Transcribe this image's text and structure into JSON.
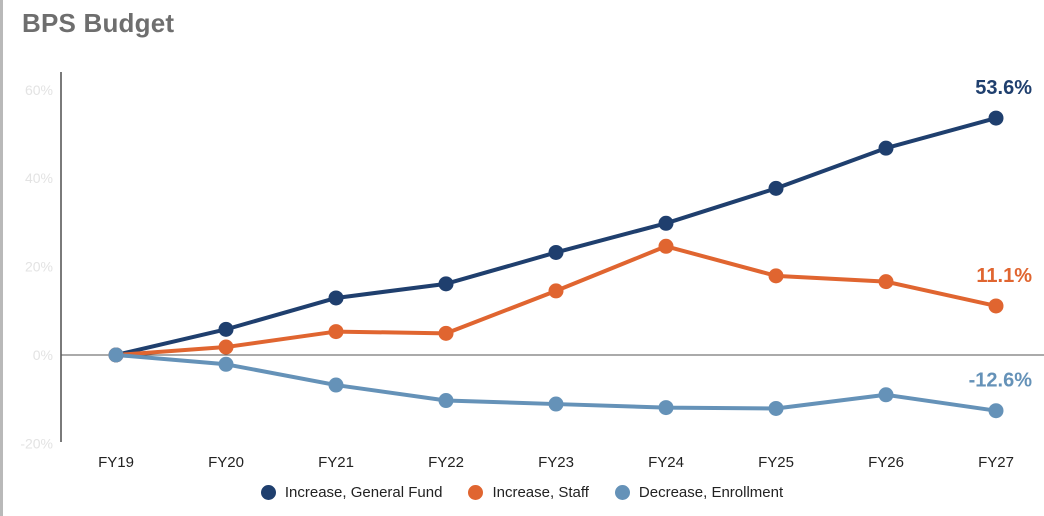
{
  "title": "BPS Budget",
  "chart_data": {
    "type": "line",
    "title": "BPS Budget",
    "categories": [
      "FY19",
      "FY20",
      "FY21",
      "FY22",
      "FY23",
      "FY24",
      "FY25",
      "FY26",
      "FY27"
    ],
    "ylim": [
      -20,
      60
    ],
    "yticks": [
      -20,
      0,
      20,
      40,
      60
    ],
    "ytick_labels": [
      "-20%",
      "0%",
      "20%",
      "40%",
      "60%"
    ],
    "grid": false,
    "legend_position": "bottom",
    "series": [
      {
        "name": "Increase, General Fund",
        "color": "#1f3f6e",
        "values": [
          0,
          5.8,
          12.9,
          16.1,
          23.2,
          29.8,
          37.7,
          46.8,
          53.6
        ],
        "end_label": "53.6%"
      },
      {
        "name": "Increase, Staff",
        "color": "#e06530",
        "values": [
          0,
          1.8,
          5.3,
          4.9,
          14.5,
          24.6,
          17.9,
          16.6,
          11.1
        ],
        "end_label": "11.1%"
      },
      {
        "name": "Decrease, Enrollment",
        "color": "#6592b8",
        "values": [
          0,
          -2.1,
          -6.8,
          -10.3,
          -11.1,
          -11.9,
          -12.1,
          -9.0,
          -12.6
        ],
        "end_label": "-12.6%"
      }
    ]
  }
}
